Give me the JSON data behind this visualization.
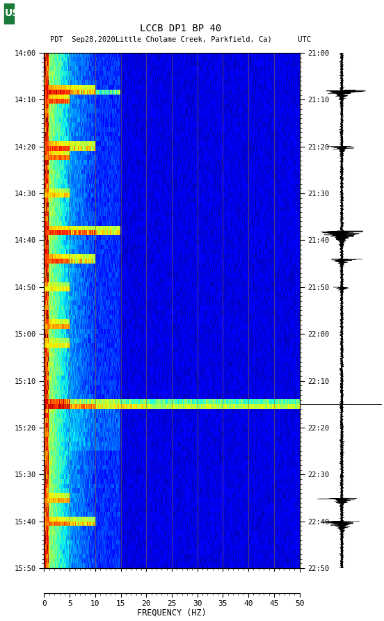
{
  "title_line1": "LCCB DP1 BP 40",
  "title_line2": "PDT  Sep28,2020Little Cholame Creek, Parkfield, Ca)      UTC",
  "left_time_labels": [
    "14:00",
    "14:10",
    "14:20",
    "14:30",
    "14:40",
    "14:50",
    "15:00",
    "15:10",
    "15:20",
    "15:30",
    "15:40",
    "15:50"
  ],
  "right_time_labels": [
    "21:00",
    "21:10",
    "21:20",
    "21:30",
    "21:40",
    "21:50",
    "22:00",
    "22:10",
    "22:20",
    "22:30",
    "22:40",
    "22:50"
  ],
  "freq_ticks": [
    0,
    5,
    10,
    15,
    20,
    25,
    30,
    35,
    40,
    45,
    50
  ],
  "xlabel": "FREQUENCY (HZ)",
  "fig_bg": "#ffffff",
  "colormap": "jet",
  "n_time": 110,
  "n_freq": 500,
  "fig_width": 5.52,
  "fig_height": 8.93,
  "grid_color": "#886633",
  "grid_alpha": 0.6
}
